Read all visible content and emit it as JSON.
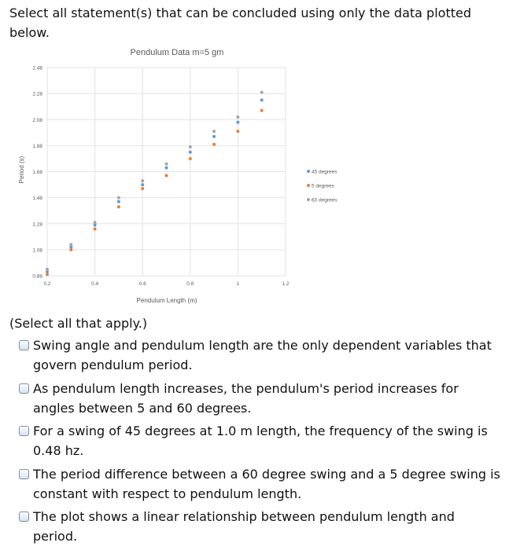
{
  "question": {
    "prompt": "Select all statement(s) that can be concluded using only the data plotted below."
  },
  "chart_data": {
    "type": "scatter",
    "title": "Pendulum Data m=5 gm",
    "xlabel": "Pendulum Length (m)",
    "ylabel": "Period (s)",
    "xlim": [
      0.2,
      1.2
    ],
    "ylim": [
      0.88,
      2.48
    ],
    "x_ticks": [
      "0.2",
      "0.4",
      "0.6",
      "0.8",
      "1",
      "1.2"
    ],
    "y_ticks": [
      "0.88",
      "1.08",
      "1.28",
      "1.48",
      "1.68",
      "1.88",
      "2.08",
      "2.28",
      "2.48"
    ],
    "grid": true,
    "legend_position": "right",
    "x": [
      0.2,
      0.3,
      0.4,
      0.5,
      0.6,
      0.7,
      0.8,
      0.9,
      1.0,
      1.1
    ],
    "series": [
      {
        "name": "45 degrees",
        "color": "#5b9bd5",
        "values": [
          0.91,
          1.1,
          1.27,
          1.45,
          1.58,
          1.71,
          1.83,
          1.95,
          2.06,
          2.23
        ]
      },
      {
        "name": "5 degrees",
        "color": "#ed7d31",
        "values": [
          0.89,
          1.08,
          1.24,
          1.41,
          1.55,
          1.65,
          1.78,
          1.89,
          1.99,
          2.15
        ]
      },
      {
        "name": "60 degrees",
        "color": "#a5a5a5",
        "values": [
          0.93,
          1.12,
          1.29,
          1.48,
          1.61,
          1.74,
          1.87,
          1.99,
          2.1,
          2.29
        ]
      }
    ]
  },
  "answers": {
    "note": "(Select all that apply.)",
    "options": [
      {
        "label": "Swing angle and pendulum length are the only dependent variables that govern pendulum period."
      },
      {
        "label": "As pendulum length increases, the pendulum's period increases for angles between 5 and 60 degrees."
      },
      {
        "label": "For a swing of 45 degrees at 1.0 m length, the frequency of the swing is 0.48 hz."
      },
      {
        "label": "The period difference between a 60 degree swing and a 5 degree swing is constant with respect to pendulum length."
      },
      {
        "label": "The plot shows a linear relationship between pendulum length and period."
      }
    ]
  }
}
